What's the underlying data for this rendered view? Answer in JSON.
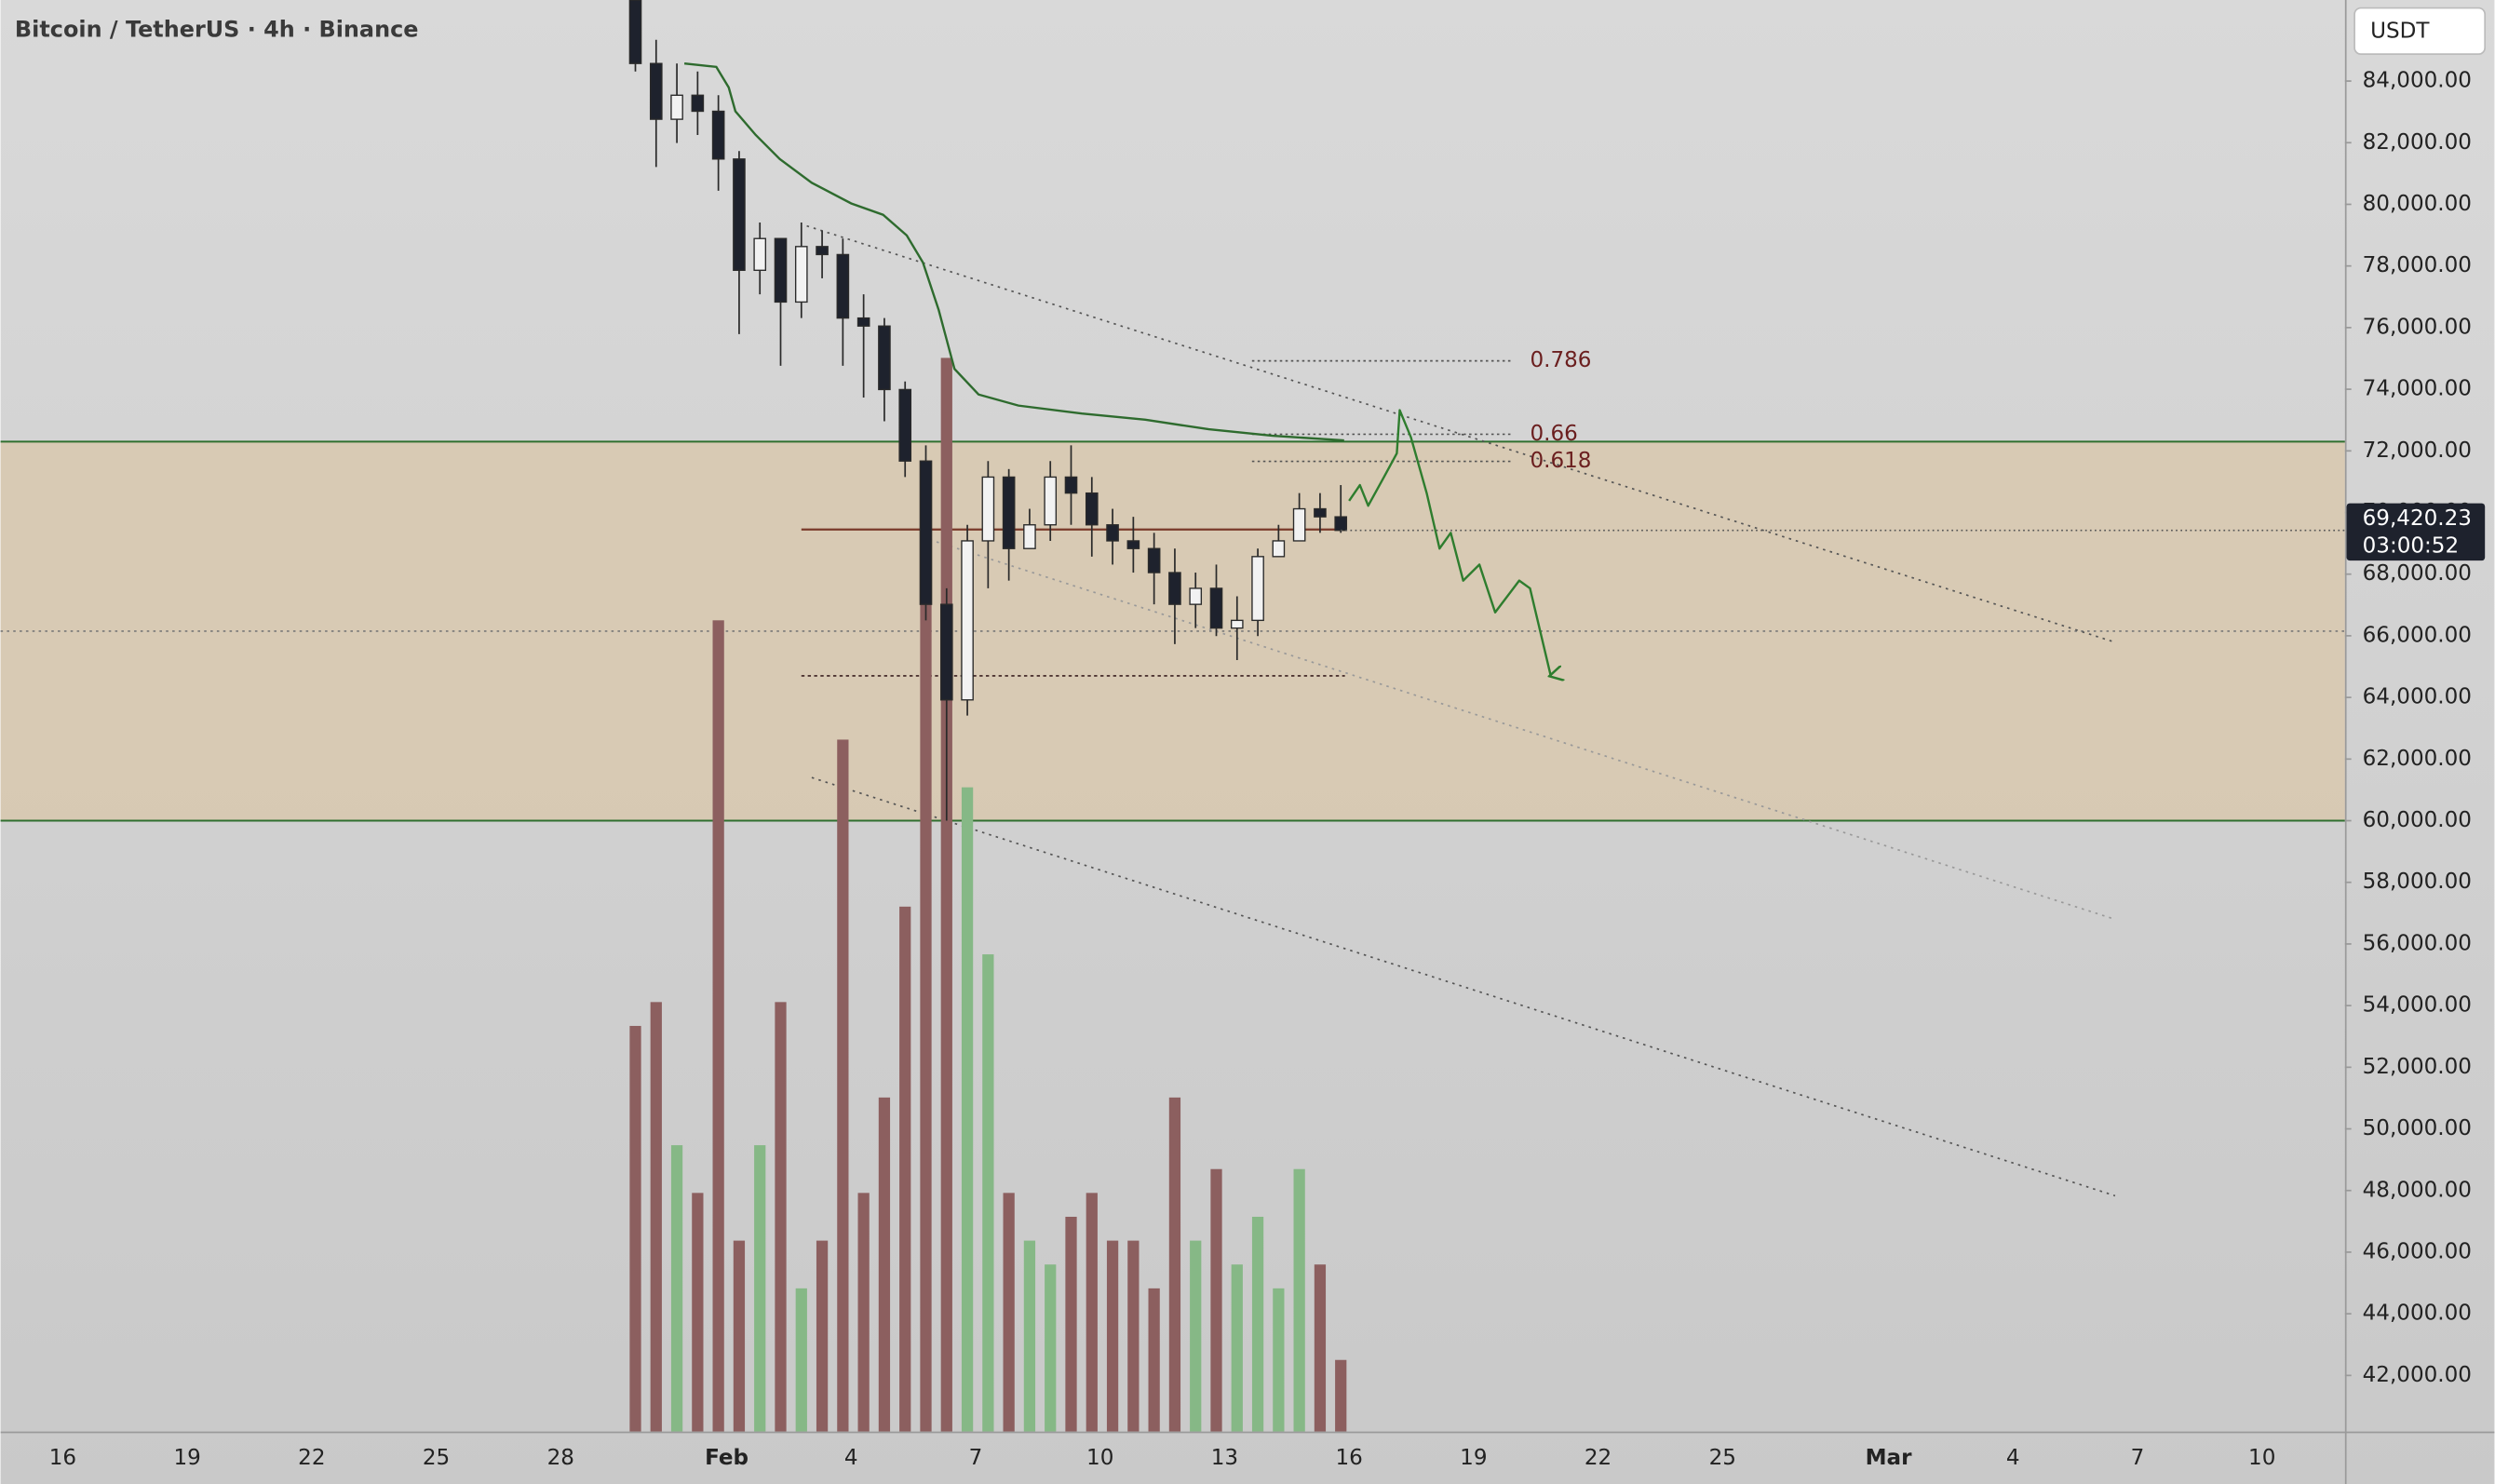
{
  "chart_data": {
    "type": "candlestick",
    "title": "Bitcoin / TetherUS · 4h · Binance",
    "currency": "USDT",
    "x": [
      29.8,
      30.3,
      30.8,
      31.3,
      31.8,
      32.3,
      32.8,
      33.3,
      33.8,
      34.3,
      34.8,
      35.3,
      35.8,
      36.3,
      36.8,
      37.3,
      37.8,
      38.3,
      38.8,
      39.3,
      39.8,
      40.3,
      40.8,
      41.3,
      41.8,
      42.3,
      42.8,
      43.3,
      43.8,
      44.3,
      44.8,
      45.3,
      45.8,
      46.3,
      46.8
    ],
    "open": [
      86630,
      84570,
      82760,
      83540,
      83020,
      81470,
      77860,
      78890,
      76830,
      78630,
      78370,
      76310,
      76050,
      73990,
      71670,
      67020,
      63920,
      69080,
      71150,
      68830,
      69600,
      71150,
      70630,
      69600,
      69080,
      68830,
      68050,
      67020,
      67540,
      66250,
      66500,
      68570,
      69080,
      70120,
      69860
    ],
    "high": [
      86630,
      85340,
      84570,
      84310,
      83540,
      81730,
      79410,
      78890,
      79410,
      79150,
      78890,
      77080,
      76310,
      74250,
      72180,
      67540,
      69600,
      71670,
      71410,
      70120,
      71670,
      72180,
      71150,
      70120,
      69860,
      69340,
      68830,
      68050,
      68310,
      67280,
      68830,
      69600,
      70630,
      70630,
      70890
    ],
    "low": [
      84310,
      81210,
      81990,
      82250,
      80440,
      75790,
      77080,
      74760,
      76310,
      77600,
      74760,
      73730,
      72960,
      71150,
      66500,
      60000,
      63410,
      67540,
      67790,
      68830,
      69080,
      69600,
      68570,
      68310,
      68050,
      67020,
      65730,
      66250,
      65990,
      65210,
      65990,
      68570,
      69080,
      69340,
      69340
    ],
    "close": [
      84570,
      82760,
      83540,
      83020,
      81470,
      77860,
      78890,
      76830,
      78630,
      78370,
      76310,
      76050,
      73990,
      71670,
      67020,
      63920,
      69080,
      71150,
      68830,
      69600,
      71150,
      70630,
      69600,
      69080,
      68830,
      68050,
      67020,
      67540,
      66250,
      66500,
      68570,
      69080,
      70120,
      69860,
      69420
    ],
    "volume": [
      85,
      90,
      60,
      50,
      170,
      40,
      60,
      90,
      30,
      40,
      145,
      50,
      70,
      110,
      200,
      225,
      135,
      100,
      50,
      40,
      35,
      45,
      50,
      40,
      40,
      30,
      70,
      40,
      55,
      35,
      45,
      30,
      55,
      35,
      15
    ],
    "xlim": [
      14.5,
      71
    ],
    "ylim": [
      40180,
      86630
    ],
    "vlim": [
      0,
      300
    ],
    "xticks": [
      16,
      19,
      22,
      25,
      28,
      {
        "value": 32,
        "label": "Feb"
      },
      {
        "value": 35,
        "label": "4"
      },
      {
        "value": 38,
        "label": "7"
      },
      {
        "value": 41,
        "label": "10"
      },
      {
        "value": 44,
        "label": "13"
      },
      {
        "value": 47,
        "label": "16"
      },
      {
        "value": 50,
        "label": "19"
      },
      {
        "value": 53,
        "label": "22"
      },
      {
        "value": 56,
        "label": "25"
      },
      {
        "value": 60,
        "label": "Mar"
      },
      {
        "value": 63,
        "label": "4"
      },
      {
        "value": 66,
        "label": "7"
      },
      {
        "value": 69,
        "label": "10"
      }
    ],
    "yticks": [
      {
        "value": 42000,
        "label": "42,000.00"
      },
      {
        "value": 44000,
        "label": "44,000.00"
      },
      {
        "value": 46000,
        "label": "46,000.00"
      },
      {
        "value": 48000,
        "label": "48,000.00"
      },
      {
        "value": 50000,
        "label": "50,000.00"
      },
      {
        "value": 52000,
        "label": "52,000.00"
      },
      {
        "value": 54000,
        "label": "54,000.00"
      },
      {
        "value": 56000,
        "label": "56,000.00"
      },
      {
        "value": 58000,
        "label": "58,000.00"
      },
      {
        "value": 60000,
        "label": "60,000.00"
      },
      {
        "value": 62000,
        "label": "62,000.00"
      },
      {
        "value": 64000,
        "label": "64,000.00"
      },
      {
        "value": 66000,
        "label": "66,000.00"
      },
      {
        "value": 68000,
        "label": "68,000.00"
      },
      {
        "value": 70000,
        "label": "70,000.00"
      },
      {
        "value": 72000,
        "label": "72,000.00"
      },
      {
        "value": 74000,
        "label": "74,000.00"
      },
      {
        "value": 76000,
        "label": "76,000.00"
      },
      {
        "value": 78000,
        "label": "78,000.00"
      },
      {
        "value": 80000,
        "label": "80,000.00"
      },
      {
        "value": 82000,
        "label": "82,000.00"
      },
      {
        "value": 84000,
        "label": "84,000.00"
      }
    ],
    "up_color": "#f2f2f2",
    "down_color": "#1e222d",
    "volume_up_color": "#86b886",
    "volume_down_color": "#8c5f5f",
    "zone": {
      "from": 60000,
      "to": 72300,
      "color": "#d9c7aa",
      "border_color": "#2f6f2f"
    },
    "midline": 66150,
    "poc": {
      "price": 69450,
      "x": [
        33.8,
        46.9
      ],
      "color": "#7a3a2a"
    },
    "support_line": {
      "price": 64700,
      "x": [
        33.8,
        46.9
      ]
    },
    "fib": {
      "x": [
        44.66,
        50.9
      ],
      "color": "#6b1f1f",
      "levels": [
        {
          "label": "0.786",
          "price": 74920
        },
        {
          "label": "0.66",
          "price": 72540
        },
        {
          "label": "0.618",
          "price": 71660
        }
      ]
    },
    "trendlines": [
      {
        "x": [
          33.93,
          65.46
        ],
        "y": [
          79300,
          65790
        ]
      },
      {
        "x": [
          36.73,
          65.46
        ],
        "y": [
          69190,
          56800
        ]
      },
      {
        "x": [
          34.05,
          65.46
        ],
        "y": [
          61400,
          47830
        ]
      }
    ],
    "moving_average": {
      "color": "#2e6b2e",
      "x": [
        30.98,
        31.75,
        32.05,
        32.21,
        32.7,
        33.28,
        34.05,
        35.0,
        35.77,
        36.34,
        36.73,
        37.11,
        37.49,
        38.07,
        39.03,
        40.56,
        42.09,
        43.62,
        45.16,
        46.88
      ],
      "y": [
        84570,
        84460,
        83790,
        83020,
        82250,
        81470,
        80700,
        80030,
        79660,
        78990,
        78110,
        76570,
        74660,
        73830,
        73470,
        73210,
        73010,
        72700,
        72490,
        72340
      ]
    },
    "projection": {
      "color": "#2e7d2e",
      "x": [
        47.0,
        47.26,
        47.46,
        47.84,
        48.15,
        48.22,
        48.49,
        48.87,
        49.18,
        49.45,
        49.75,
        50.14,
        50.52,
        51.1,
        51.36,
        51.86
      ],
      "y": [
        70380,
        70890,
        70220,
        71150,
        71920,
        73320,
        72440,
        70630,
        68830,
        69340,
        67790,
        68310,
        66760,
        67790,
        67540,
        64700
      ]
    },
    "last_price": {
      "value": 69420.23,
      "label": "69,420.23",
      "countdown": "03:00:52"
    }
  }
}
